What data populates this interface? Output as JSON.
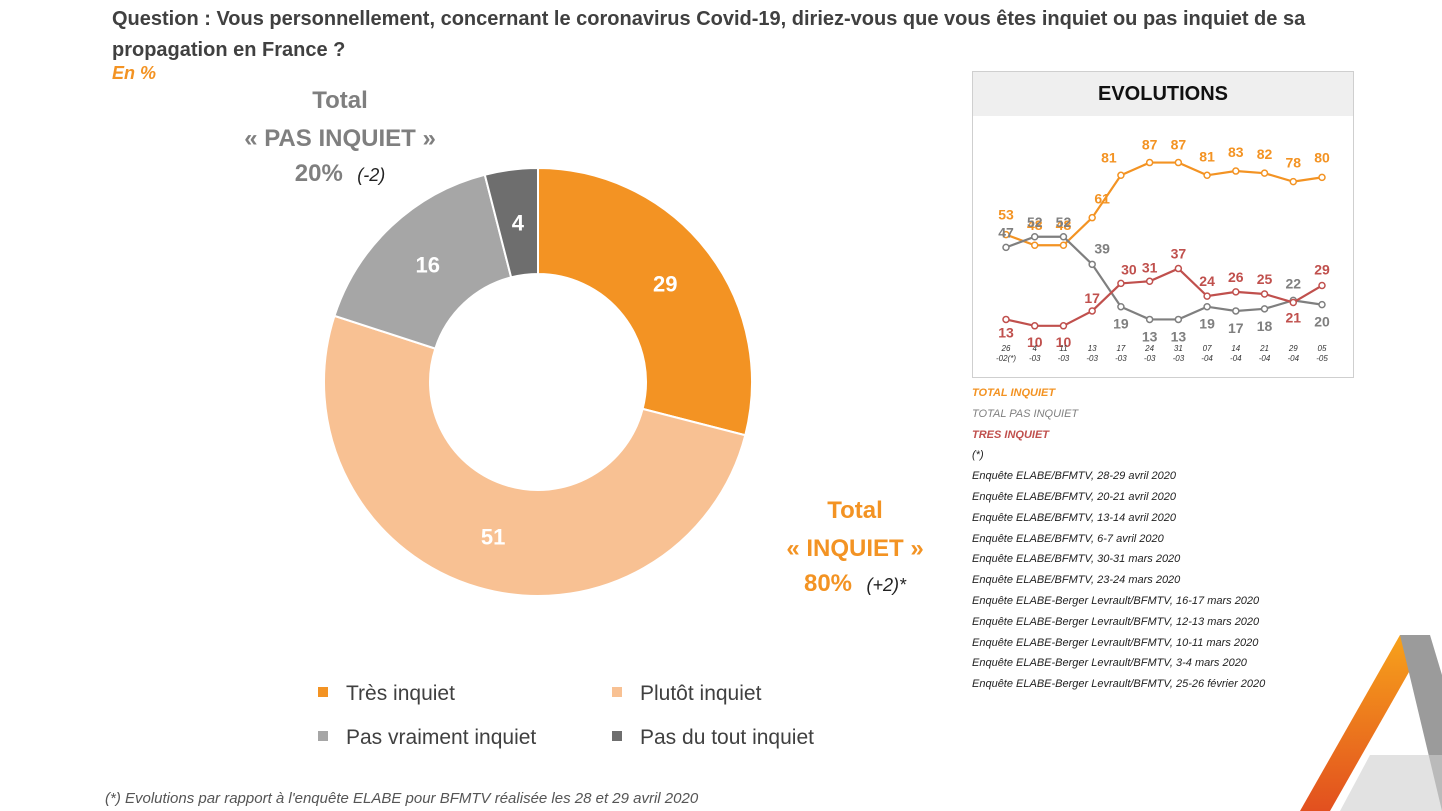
{
  "question": "Question : Vous personnellement, concernant le coronavirus Covid-19, diriez-vous que vous êtes inquiet ou pas inquiet de sa propagation en France ?",
  "unit": "En %",
  "total_pas_inquiet": {
    "line1": "Total",
    "line2": "« PAS INQUIET »",
    "percent": "20%",
    "delta": "(-2)"
  },
  "total_inquiet": {
    "line1": "Total",
    "line2": "« INQUIET »",
    "percent": "80%",
    "delta": "(+2)*"
  },
  "chart_data": [
    {
      "type": "pie",
      "variant": "donut",
      "categories": [
        "Très inquiet",
        "Plutôt inquiet",
        "Pas vraiment inquiet",
        "Pas du tout inquiet"
      ],
      "values": [
        29,
        51,
        16,
        4
      ],
      "colors": [
        "#f39323",
        "#f8c193",
        "#a6a6a6",
        "#6e6e6e"
      ],
      "legend_position": "bottom"
    },
    {
      "type": "line",
      "title": "EVOLUTIONS",
      "x": [
        "26 -02(*)",
        "4 -03",
        "11 -03",
        "13 -03",
        "17 -03",
        "24 -03",
        "31 -03",
        "07 -04",
        "14 -04",
        "21 -04",
        "29 -04",
        "05 -05"
      ],
      "series": [
        {
          "name": "TOTAL INQUIET",
          "color": "#f39323",
          "values": [
            53,
            48,
            48,
            61,
            81,
            87,
            87,
            81,
            83,
            82,
            78,
            80
          ]
        },
        {
          "name": "TOTAL PAS INQUIET",
          "color": "#7f7f7f",
          "values": [
            47,
            52,
            52,
            39,
            19,
            13,
            13,
            19,
            17,
            18,
            22,
            20
          ]
        },
        {
          "name": "TRES INQUIET",
          "color": "#c0504d",
          "values": [
            13,
            10,
            10,
            17,
            30,
            31,
            37,
            24,
            26,
            25,
            21,
            29
          ]
        }
      ],
      "ylim": [
        0,
        100
      ],
      "grid": false
    }
  ],
  "evolutions": {
    "legend": [
      "TOTAL INQUIET",
      "TOTAL PAS INQUIET",
      "TRES INQUIET"
    ],
    "legend_colors": [
      "#f39323",
      "#7f7f7f",
      "#c0504d"
    ],
    "star": "(*)",
    "sources": [
      "Enquête ELABE/BFMTV, 28-29 avril 2020",
      "Enquête ELABE/BFMTV, 20-21 avril 2020",
      "Enquête ELABE/BFMTV, 13-14 avril 2020",
      "Enquête ELABE/BFMTV, 6-7 avril 2020",
      "Enquête ELABE/BFMTV, 30-31 mars 2020",
      "Enquête ELABE/BFMTV, 23-24 mars 2020",
      "Enquête ELABE-Berger Levrault/BFMTV, 16-17 mars 2020",
      "Enquête ELABE-Berger Levrault/BFMTV, 12-13 mars 2020",
      "Enquête ELABE-Berger Levrault/BFMTV, 10-11 mars 2020",
      "Enquête ELABE-Berger Levrault/BFMTV, 3-4 mars 2020",
      "Enquête ELABE-Berger Levrault/BFMTV, 25-26 février 2020"
    ]
  },
  "footnote": "(*) Evolutions par rapport à l'enquête ELABE pour BFMTV réalisée les 28 et 29 avril 2020"
}
